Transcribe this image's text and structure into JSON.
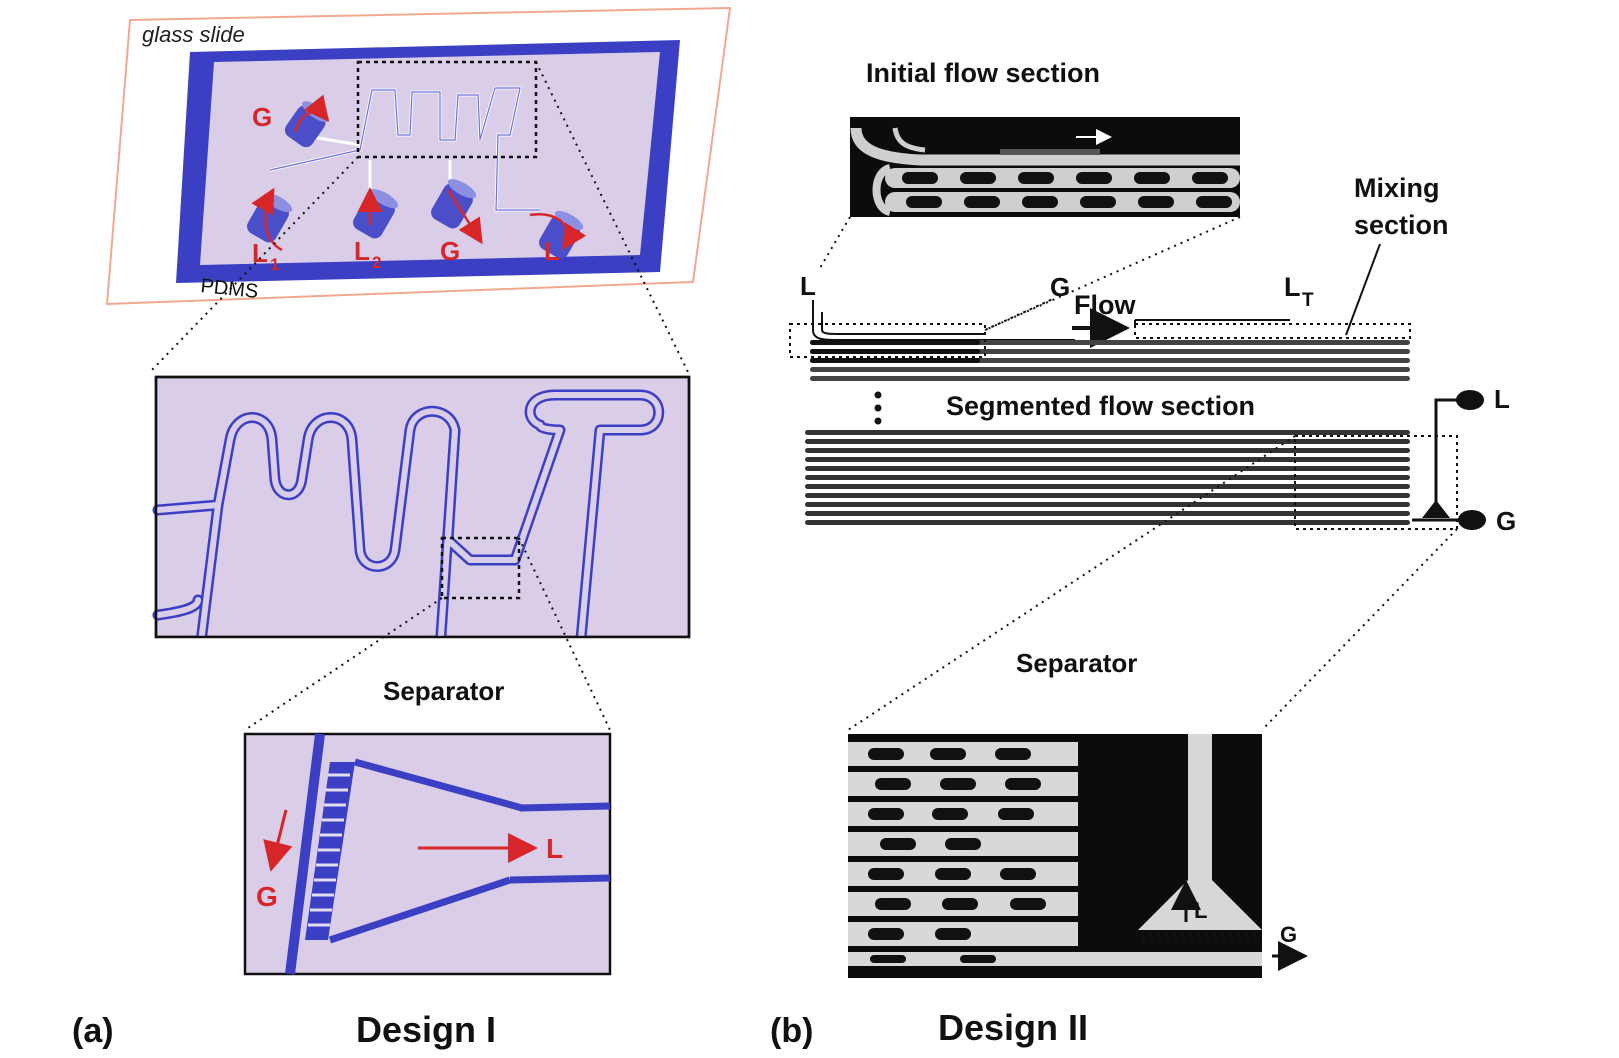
{
  "panel_a": {
    "panel_letter": "(a)",
    "design_label": "Design I",
    "glass_slide_label": "glass slide",
    "pdms_label": "PDMS",
    "port_labels": {
      "g_top": "G",
      "l1": "L",
      "l1_sub": "1",
      "l2": "L",
      "l2_sub": "2",
      "g_bottom": "G",
      "l_out": "L"
    },
    "separator_title": "Separator",
    "separator_labels": {
      "g": "G",
      "l": "L"
    }
  },
  "panel_b": {
    "panel_letter": "(b)",
    "design_label": "Design II",
    "initial_flow_title": "Initial flow section",
    "mixing_section_line1": "Mixing",
    "mixing_section_line2": "section",
    "segmented_flow_title": "Segmented flow section",
    "inlet_l": "L",
    "inlet_g": "G",
    "flow_label": "Flow",
    "lt_label": "L",
    "lt_sub": "T",
    "outlet_l": "L",
    "outlet_g": "G",
    "separator_title": "Separator",
    "separator_l": "L",
    "separator_g": "G"
  },
  "colors": {
    "pdms_blue": "#3b3fc4",
    "chip_fill": "#d9cde8",
    "arrow_red": "#d7262a",
    "slide_outline": "#f0a890"
  }
}
